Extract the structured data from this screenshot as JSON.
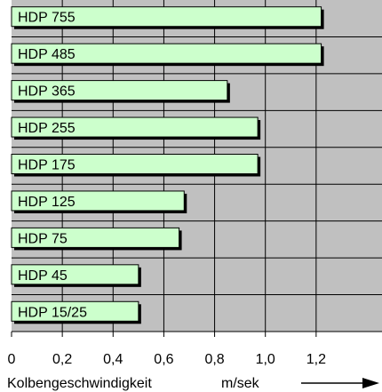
{
  "chart_data": {
    "type": "bar",
    "orientation": "horizontal",
    "categories": [
      "HDP 755",
      "HDP 485",
      "HDP 365",
      "HDP 255",
      "HDP 175",
      "HDP 125",
      "HDP 75",
      "HDP 45",
      "HDP 15/25"
    ],
    "values": [
      1.22,
      1.22,
      0.85,
      0.97,
      0.97,
      0.68,
      0.66,
      0.5,
      0.5
    ],
    "xlabel": "Kolbengeschwindigkeit",
    "xunit": "m/sek",
    "xlim": [
      0,
      1.4
    ],
    "xticks": [
      "0",
      "0,2",
      "0,4",
      "0,6",
      "0,8",
      "1,0",
      "1,2"
    ],
    "grid": true,
    "legend": "none",
    "colors": {
      "plot_background": "#c0c0c0",
      "bar_fill": "#ccffcc",
      "bar_shadow": "#000000",
      "grid_line": "#000000"
    }
  }
}
